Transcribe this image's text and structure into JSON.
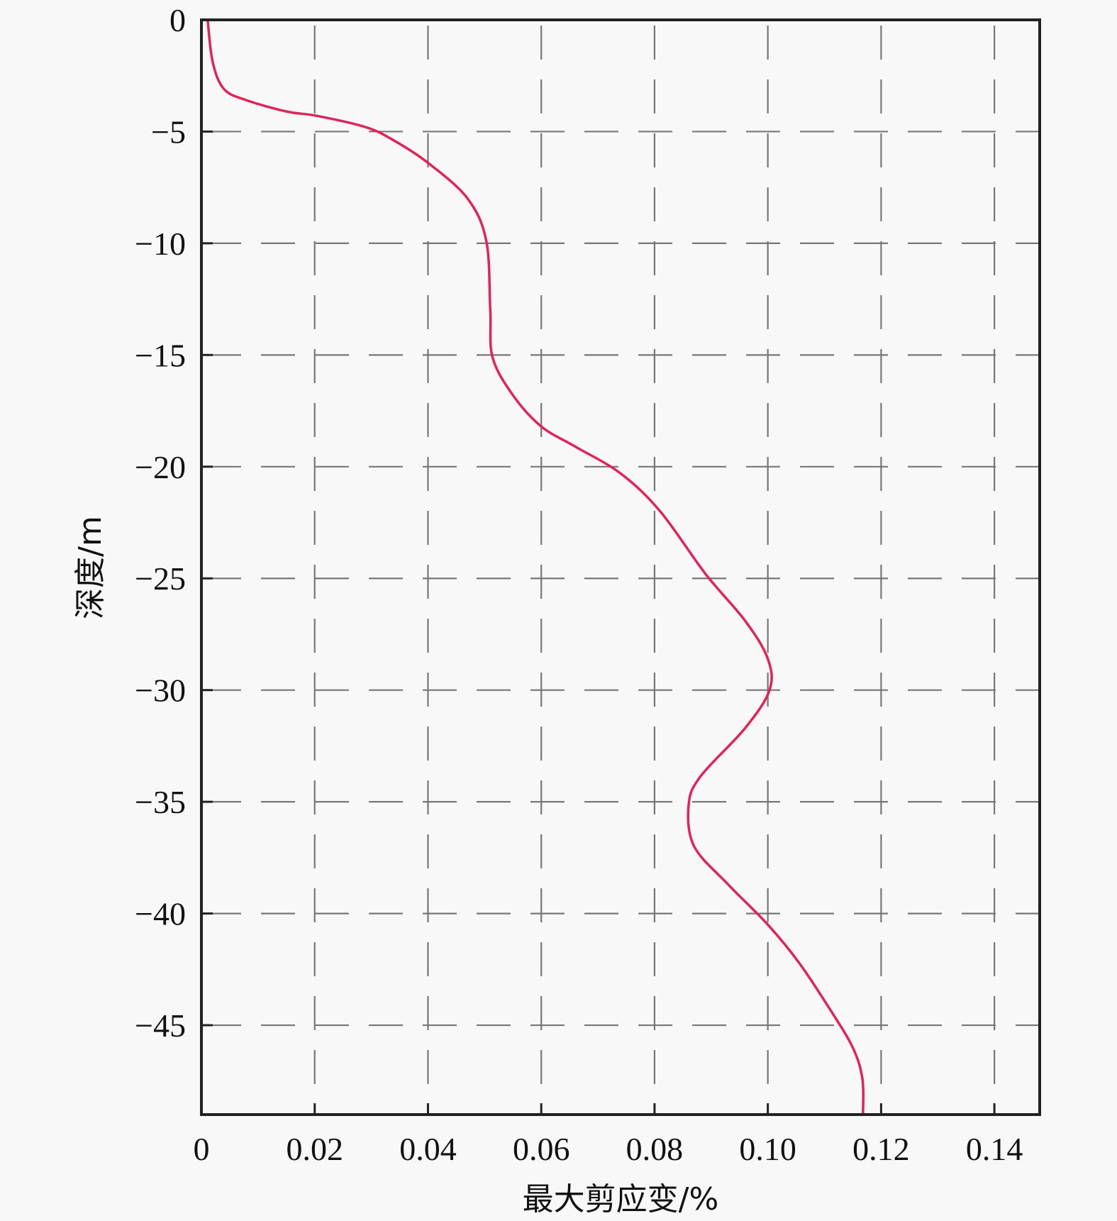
{
  "chart_data": {
    "type": "line",
    "title": "",
    "xlabel": "最大剪应变/%",
    "ylabel": "深度/m",
    "xlim": [
      0,
      0.148
    ],
    "ylim": [
      -49,
      0
    ],
    "grid": true,
    "grid_style": "dashed",
    "xticks": [
      0,
      0.02,
      0.04,
      0.06,
      0.08,
      0.1,
      0.12,
      0.14
    ],
    "xtick_labels": [
      "0",
      "0.02",
      "0.04",
      "0.06",
      "0.08",
      "0.10",
      "0.12",
      "0.14"
    ],
    "yticks": [
      0,
      -5,
      -10,
      -15,
      -20,
      -25,
      -30,
      -35,
      -40,
      -45
    ],
    "ytick_labels": [
      "0",
      "−5",
      "−10",
      "−15",
      "−20",
      "−25",
      "−30",
      "−35",
      "−40",
      "−45"
    ],
    "line_color": "#e0245a",
    "series": [
      {
        "x": [
          0.0011,
          0.002,
          0.004,
          0.008,
          0.015,
          0.0205,
          0.029,
          0.034,
          0.04,
          0.047,
          0.0503,
          0.051,
          0.0514,
          0.055,
          0.06,
          0.066,
          0.074,
          0.081,
          0.089,
          0.096,
          0.1,
          0.1003,
          0.096,
          0.088,
          0.086,
          0.087,
          0.093,
          0.1,
          0.1055,
          0.111,
          0.115,
          0.1167,
          0.1168
        ],
        "y": [
          0,
          -1.9,
          -3.1,
          -3.6,
          -4.1,
          -4.3,
          -4.8,
          -5.4,
          -6.4,
          -8,
          -9.9,
          -13,
          -15.1,
          -16.8,
          -18.2,
          -19.1,
          -20.3,
          -22,
          -24.8,
          -26.9,
          -28.6,
          -30,
          -31.7,
          -33.9,
          -35.2,
          -37,
          -38.7,
          -40.5,
          -42.2,
          -44.3,
          -46,
          -47.4,
          -49
        ]
      }
    ]
  }
}
